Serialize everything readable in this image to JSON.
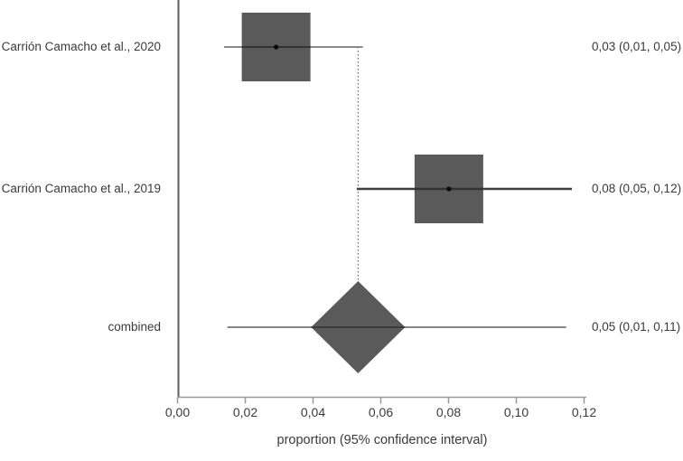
{
  "chart_data": {
    "type": "forest",
    "title": "",
    "xlabel": "proportion (95% confidence interval)",
    "x_axis": {
      "min": 0.0,
      "max": 0.12,
      "tick_values": [
        0.0,
        0.02,
        0.04,
        0.06,
        0.08,
        0.1,
        0.12
      ],
      "tick_labels": [
        "0,00",
        "0,02",
        "0,04",
        "0,06",
        "0,08",
        "0,10",
        "0,12"
      ]
    },
    "reference_line": {
      "style": "dotted",
      "x": 0.0533
    },
    "rows": [
      {
        "label": "Carrión Camacho et al., 2020",
        "marker": "square",
        "estimate": 0.0291,
        "ci_low": 0.0137,
        "ci_high": 0.0547,
        "estimate_label": "0,03 (0,01, 0,05)",
        "line_color": "#8a8a8a",
        "line_width": 2
      },
      {
        "label": "Carrión Camacho et al., 2019",
        "marker": "square",
        "estimate": 0.0801,
        "ci_low": 0.0529,
        "ci_high": 0.1164,
        "estimate_label": "0,08 (0,05, 0,12)",
        "line_color": "#3f3f3f",
        "line_width": 2.5
      },
      {
        "label": "combined",
        "marker": "diamond",
        "estimate": 0.0533,
        "ci_low": 0.0147,
        "ci_high": 0.1147,
        "estimate_label": "0,05 (0,01, 0,11)",
        "line_color": "#5f5f5f",
        "line_width": 1.5
      }
    ],
    "legend": null,
    "grid": false,
    "colors": {
      "marker_fill": "#5a5a5a",
      "axis_line": "#5c5c5c",
      "baseline": "#999999",
      "text": "#3a3a3a",
      "center_dot": "#0a0a0a",
      "overlay_line": "#333333"
    }
  }
}
